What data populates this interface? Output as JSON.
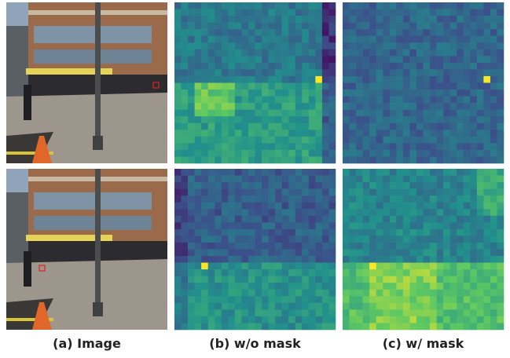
{
  "captions": [
    "(a) Image",
    "(b) w/o mask",
    "(c) w/ mask"
  ]
}
